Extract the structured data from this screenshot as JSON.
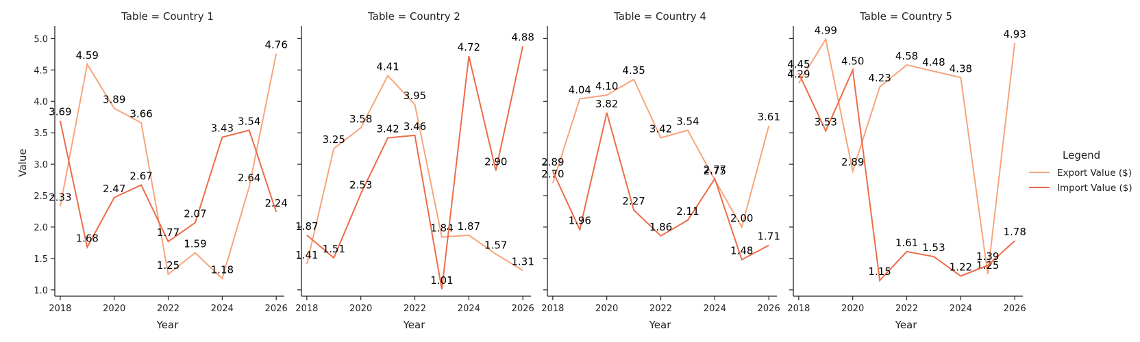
{
  "chart_data": {
    "type": "line",
    "xlabel": "Year",
    "ylabel": "Value",
    "ylim": [
      0.9,
      5.2
    ],
    "xlim": [
      2017.8,
      2026.3
    ],
    "x_ticks": [
      2018,
      2020,
      2022,
      2024,
      2026
    ],
    "y_ticks": [
      1.0,
      1.5,
      2.0,
      2.5,
      3.0,
      3.5,
      4.0,
      4.5,
      5.0
    ],
    "y_tick_labels": [
      "1.0",
      "1.5",
      "2.0",
      "2.5",
      "3.0",
      "3.5",
      "4.0",
      "4.5",
      "5.0"
    ],
    "legend": {
      "title": "Legend",
      "placement": "right",
      "entries": [
        "Export Value ($)",
        "Import Value ($)"
      ]
    },
    "colors": {
      "Export Value ($)": "#f7a47c",
      "Import Value ($)": "#ee6b47"
    },
    "x": [
      2018,
      2019,
      2020,
      2021,
      2022,
      2023,
      2024,
      2025,
      2026
    ],
    "panels": [
      {
        "title": "Table = Country 1",
        "series": [
          {
            "name": "Export Value ($)",
            "values": [
              2.33,
              4.59,
              3.89,
              3.66,
              1.25,
              1.59,
              1.18,
              2.64,
              4.76
            ]
          },
          {
            "name": "Import Value ($)",
            "values": [
              3.69,
              1.68,
              2.47,
              2.67,
              1.77,
              2.07,
              3.43,
              3.54,
              2.24
            ]
          }
        ]
      },
      {
        "title": "Table = Country 2",
        "series": [
          {
            "name": "Export Value ($)",
            "values": [
              1.41,
              3.25,
              3.58,
              4.41,
              3.95,
              1.84,
              1.87,
              1.57,
              1.31
            ]
          },
          {
            "name": "Import Value ($)",
            "values": [
              1.87,
              1.51,
              2.53,
              3.42,
              3.46,
              1.01,
              4.72,
              2.9,
              4.88
            ]
          }
        ]
      },
      {
        "title": "Table = Country 4",
        "series": [
          {
            "name": "Export Value ($)",
            "values": [
              2.7,
              4.04,
              4.1,
              4.35,
              3.42,
              3.54,
              2.75,
              2.0,
              3.61
            ]
          },
          {
            "name": "Import Value ($)",
            "values": [
              2.89,
              1.96,
              3.82,
              2.27,
              1.86,
              2.11,
              2.77,
              1.48,
              1.71
            ]
          }
        ]
      },
      {
        "title": "Table = Country 5",
        "series": [
          {
            "name": "Export Value ($)",
            "values": [
              4.29,
              4.99,
              2.89,
              4.23,
              4.58,
              4.48,
              4.38,
              1.25,
              4.93
            ]
          },
          {
            "name": "Import Value ($)",
            "values": [
              4.45,
              3.53,
              4.5,
              1.15,
              1.61,
              1.53,
              1.22,
              1.39,
              1.78
            ]
          }
        ]
      }
    ]
  }
}
